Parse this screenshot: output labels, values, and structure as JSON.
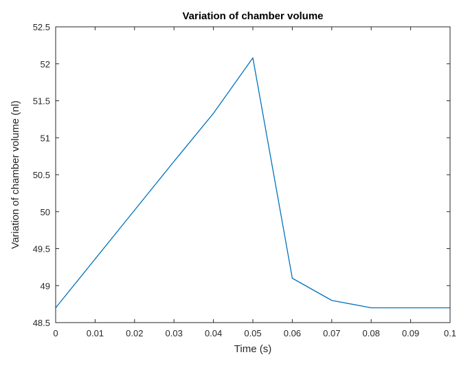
{
  "chart_data": {
    "type": "line",
    "title": "Variation of chamber volume",
    "xlabel": "Time (s)",
    "ylabel": "Variation of chamber volume (nl)",
    "xlim": [
      0,
      0.1
    ],
    "ylim": [
      48.5,
      52.5
    ],
    "xticks": [
      0,
      0.01,
      0.02,
      0.03,
      0.04,
      0.05,
      0.06,
      0.07,
      0.08,
      0.09,
      0.1
    ],
    "xtick_labels": [
      "0",
      "0.01",
      "0.02",
      "0.03",
      "0.04",
      "0.05",
      "0.06",
      "0.07",
      "0.08",
      "0.09",
      "0.1"
    ],
    "yticks": [
      48.5,
      49,
      49.5,
      50,
      50.5,
      51,
      51.5,
      52,
      52.5
    ],
    "ytick_labels": [
      "48.5",
      "49",
      "49.5",
      "50",
      "50.5",
      "51",
      "51.5",
      "52",
      "52.5"
    ],
    "grid": false,
    "series": [
      {
        "color": "#0072BD",
        "x": [
          0,
          0.01,
          0.02,
          0.03,
          0.04,
          0.05,
          0.06,
          0.07,
          0.08,
          0.09,
          0.1
        ],
        "y": [
          48.7,
          49.36,
          50.02,
          50.68,
          51.33,
          52.08,
          49.1,
          48.8,
          48.7,
          48.7,
          48.7
        ]
      }
    ]
  }
}
